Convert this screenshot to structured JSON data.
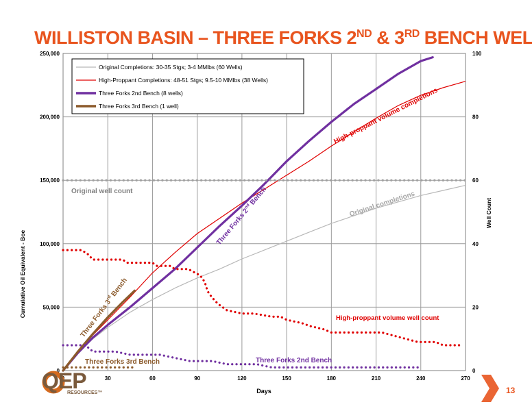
{
  "slide": {
    "title_main": "WILLISTON BASIN – THREE FORKS 2",
    "title_sup1": "ND",
    "title_mid": " & 3",
    "title_sup2": "RD",
    "title_end": " BENCH WELLS",
    "page_number": "13",
    "logo_text": "QEP",
    "logo_sub": "RESOURCES™"
  },
  "chart_data": {
    "type": "line",
    "xlabel": "Days",
    "ylabel_left": "Cumulative Oil Equivalent - Boe",
    "ylabel_right": "Well Count",
    "xlim": [
      0,
      270
    ],
    "ylim_left": [
      0,
      250000
    ],
    "ylim_right": [
      0,
      100
    ],
    "x_ticks": [
      0,
      30,
      60,
      90,
      120,
      150,
      180,
      210,
      240,
      270
    ],
    "x_tick_labels": [
      "0",
      "30",
      "60",
      "90",
      "120",
      "150",
      "180",
      "210",
      "240",
      "270"
    ],
    "y_left_ticks": [
      0,
      50000,
      100000,
      150000,
      200000,
      250000
    ],
    "y_left_tick_labels": [
      "0",
      "50,000",
      "100,000",
      "150,000",
      "200,000",
      "250,000"
    ],
    "y_right_ticks": [
      0,
      20,
      40,
      60,
      80,
      100
    ],
    "y_right_tick_labels": [
      "0",
      "20",
      "40",
      "60",
      "80",
      "100"
    ],
    "grid": true,
    "legend_position": "top-left",
    "series": [
      {
        "name": "Original Completions: 30-35 Stgs; 3-4 MMlbs (60 Wells)",
        "axis": "left",
        "color": "#b8b8b8",
        "style": "solid",
        "x": [
          0,
          10,
          20,
          30,
          45,
          60,
          75,
          90,
          105,
          120,
          135,
          150,
          165,
          180,
          195,
          210,
          225,
          240,
          255,
          270
        ],
        "y": [
          0,
          14000,
          25000,
          34000,
          46000,
          56000,
          65000,
          73000,
          80000,
          88000,
          95000,
          102000,
          109000,
          116000,
          122000,
          128000,
          133000,
          138000,
          142000,
          146000
        ]
      },
      {
        "name": "High-Proppant Completions: 48-51 Stgs; 9.5-10 MMlbs (38 Wells)",
        "axis": "left",
        "color": "#e00000",
        "style": "solid",
        "x": [
          0,
          10,
          20,
          30,
          45,
          60,
          75,
          90,
          105,
          120,
          135,
          150,
          165,
          180,
          195,
          210,
          225,
          240,
          255,
          270
        ],
        "y": [
          0,
          15000,
          28000,
          40000,
          58000,
          77000,
          93000,
          108000,
          120000,
          132000,
          143000,
          154000,
          165000,
          177000,
          188000,
          199000,
          209000,
          217000,
          223000,
          228000
        ]
      },
      {
        "name": "Three Forks 2nd Bench (8 wells)",
        "axis": "left",
        "color": "#7030a0",
        "style": "solid-thick",
        "x": [
          0,
          10,
          20,
          30,
          45,
          60,
          75,
          90,
          105,
          120,
          135,
          150,
          165,
          180,
          195,
          210,
          225,
          240,
          248
        ],
        "y": [
          0,
          14000,
          26000,
          36000,
          50000,
          65000,
          80000,
          97000,
          114000,
          130000,
          147000,
          165000,
          181000,
          196000,
          210000,
          222000,
          234000,
          244000,
          247000
        ]
      },
      {
        "name": "Three Forks 3rd Bench (1 well)",
        "axis": "left",
        "color": "#8b5a2b",
        "style": "solid-thick",
        "x": [
          0,
          10,
          20,
          30,
          40,
          48
        ],
        "y": [
          0,
          15000,
          29000,
          42000,
          54000,
          63000
        ]
      },
      {
        "name": "Original well count",
        "axis": "right",
        "color": "#a0a0a0",
        "style": "dotted",
        "x": [
          0,
          270
        ],
        "y": [
          60,
          60
        ]
      },
      {
        "name": "High-proppant volume well count",
        "axis": "right",
        "color": "#e00000",
        "style": "dotted",
        "x": [
          0,
          12,
          16,
          20,
          40,
          43,
          60,
          63,
          72,
          75,
          84,
          88,
          92,
          95,
          97,
          100,
          104,
          110,
          120,
          128,
          140,
          146,
          150,
          160,
          166,
          175,
          180,
          200,
          214,
          222,
          230,
          238,
          250,
          255,
          268
        ],
        "y": [
          38,
          38,
          37,
          35,
          35,
          34,
          34,
          33,
          33,
          32,
          32,
          31,
          30,
          28,
          25,
          23,
          21,
          19,
          18,
          18,
          17,
          17,
          16,
          15,
          14,
          13,
          12,
          12,
          12,
          11,
          10,
          9,
          9,
          8,
          8
        ]
      },
      {
        "name": "Three Forks 2nd Bench well count",
        "axis": "right",
        "color": "#7030a0",
        "style": "dotted",
        "x": [
          0,
          15,
          20,
          35,
          45,
          65,
          75,
          85,
          100,
          110,
          120,
          130,
          140,
          150,
          170,
          200,
          240
        ],
        "y": [
          8,
          8,
          6,
          6,
          5,
          5,
          4,
          3,
          3,
          2,
          2,
          2,
          1,
          1,
          1,
          1,
          1
        ]
      },
      {
        "name": "Three Forks 3rd Bench well count",
        "axis": "right",
        "color": "#8b5a2b",
        "style": "dotted",
        "x": [
          0,
          48
        ],
        "y": [
          1,
          1
        ]
      }
    ],
    "annotations": [
      {
        "text": "Original well count",
        "color": "#808080"
      },
      {
        "text": "Original completions",
        "color": "#a6a6a6"
      },
      {
        "text": "High-proppant volume completions",
        "color": "#e00000"
      },
      {
        "text": "Three Forks 2",
        "sup": "nd",
        "tail": " Bench",
        "color": "#7030a0"
      },
      {
        "text": "Three Forks 3",
        "sup": "rd",
        "tail": " Bench",
        "color": "#8b5a2b"
      },
      {
        "text": "High-proppant volume well count",
        "color": "#e00000"
      },
      {
        "text": "Three Forks 3rd Bench",
        "color": "#8b5a2b"
      },
      {
        "text": "Three Forks 2nd Bench",
        "color": "#7030a0"
      }
    ]
  }
}
